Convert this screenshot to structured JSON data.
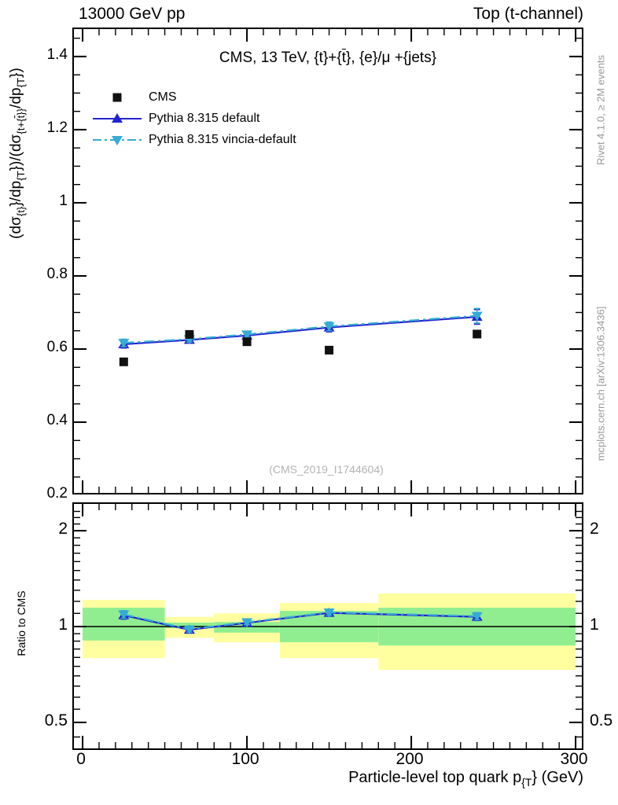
{
  "header": {
    "left_label": "13000 GeV pp",
    "right_label": "Top (t-channel)"
  },
  "side_notes": {
    "right_top": "Rivet 4.1.0, ≥ 2M events",
    "right_bottom": "mcplots.cern.ch [arXiv:1306.3436]"
  },
  "watermark": "(CMS_2019_I1744604)",
  "title_segments": [
    {
      "t": "CMS, 13 TeV, {t}+{"
    },
    {
      "o": "t"
    },
    {
      "t": "}, {e}/μ +{jets}"
    }
  ],
  "axes": {
    "x_label_segments": [
      {
        "t": "Particle-level top quark p"
      },
      {
        "s": "{T"
      },
      {
        "t": "} (GeV)"
      }
    ],
    "x_ticks_labeled": [
      0,
      100,
      200,
      300
    ],
    "x_minor_step": 10,
    "main_y_ticks_labeled": [
      "1.4",
      "1.2",
      "1",
      "0.8",
      "0.6",
      "0.4",
      "0.2"
    ],
    "main_y_tick_values": [
      1.4,
      1.2,
      1.0,
      0.8,
      0.6,
      0.4,
      0.2
    ],
    "main_y_label_segments": [
      {
        "t": "(dσ"
      },
      {
        "s": "{t}"
      },
      {
        "t": "}/dp"
      },
      {
        "s": "{T"
      },
      {
        "t": "})/(dσ"
      },
      {
        "s": "{t+{"
      },
      {
        "so": "t"
      },
      {
        "s": "}}"
      },
      {
        "t": "/dp"
      },
      {
        "s": "{T"
      },
      {
        "t": "})"
      }
    ],
    "ratio_y_label": "Ratio to CMS",
    "ratio_y_ticks_labeled": [
      "2",
      "1",
      "0.5"
    ],
    "ratio_y_tick_values": [
      2,
      1,
      0.5
    ]
  },
  "legend": [
    {
      "label": "CMS",
      "marker": "square",
      "line": "none"
    },
    {
      "label": "Pythia 8.315 default",
      "marker": "triangle-up",
      "line": "solid"
    },
    {
      "label": "Pythia 8.315 vincia-default",
      "marker": "triangle-down",
      "line": "dashdot"
    }
  ],
  "colors": {
    "cms": "#111111",
    "pythia_default": "#2323cf",
    "pythia_vincia": "#36abd5",
    "band_yellow": "#ffffa0",
    "band_green": "#90ee90",
    "note_gray": "#999999"
  },
  "chart_data": {
    "type": "line",
    "x_values": [
      25,
      65,
      100,
      150,
      240
    ],
    "bin_edges": [
      0,
      50,
      80,
      120,
      180,
      300
    ],
    "xlim": [
      -5.3,
      305.7
    ],
    "main": {
      "ylim": [
        0.198,
        1.475
      ],
      "ytick_major_step": 0.2,
      "ytick_minor_step": 0.05,
      "series": [
        {
          "name": "CMS",
          "values": [
            0.565,
            0.64,
            0.62,
            0.597,
            0.641
          ]
        },
        {
          "name": "Pythia 8.315 default",
          "values": [
            0.613,
            0.625,
            0.637,
            0.659,
            0.688
          ],
          "yerr": [
            0.01,
            0.008,
            0.008,
            0.012,
            0.02
          ]
        },
        {
          "name": "Pythia 8.315 vincia-default",
          "values": [
            0.617,
            0.627,
            0.64,
            0.662,
            0.691
          ],
          "yerr": [
            0.01,
            0.008,
            0.008,
            0.012,
            0.02
          ]
        }
      ]
    },
    "ratio": {
      "yscale": "log",
      "ylim": [
        0.405,
        2.428
      ],
      "reference_line": 1,
      "series": [
        {
          "name": "Pythia 8.315 default",
          "values": [
            1.085,
            0.977,
            1.027,
            1.104,
            1.073
          ],
          "yerr": [
            0.03,
            0.02,
            0.018,
            0.022,
            0.028
          ]
        },
        {
          "name": "Pythia 8.315 vincia-default",
          "values": [
            1.092,
            0.98,
            1.032,
            1.108,
            1.078
          ],
          "yerr": [
            0.03,
            0.02,
            0.018,
            0.022,
            0.028
          ]
        }
      ],
      "bands": [
        {
          "x0": 0,
          "x1": 50,
          "yellow": [
            0.796,
            1.213
          ],
          "green": [
            0.904,
            1.146
          ]
        },
        {
          "x0": 50,
          "x1": 80,
          "yellow": [
            0.922,
            1.072
          ],
          "green": [
            0.989,
            1.029
          ]
        },
        {
          "x0": 80,
          "x1": 120,
          "yellow": [
            0.892,
            1.1
          ],
          "green": [
            0.957,
            1.033
          ]
        },
        {
          "x0": 120,
          "x1": 180,
          "yellow": [
            0.796,
            1.186
          ],
          "green": [
            0.893,
            1.12
          ]
        },
        {
          "x0": 180,
          "x1": 300,
          "yellow": [
            0.731,
            1.27
          ],
          "green": [
            0.872,
            1.146
          ]
        }
      ]
    }
  }
}
